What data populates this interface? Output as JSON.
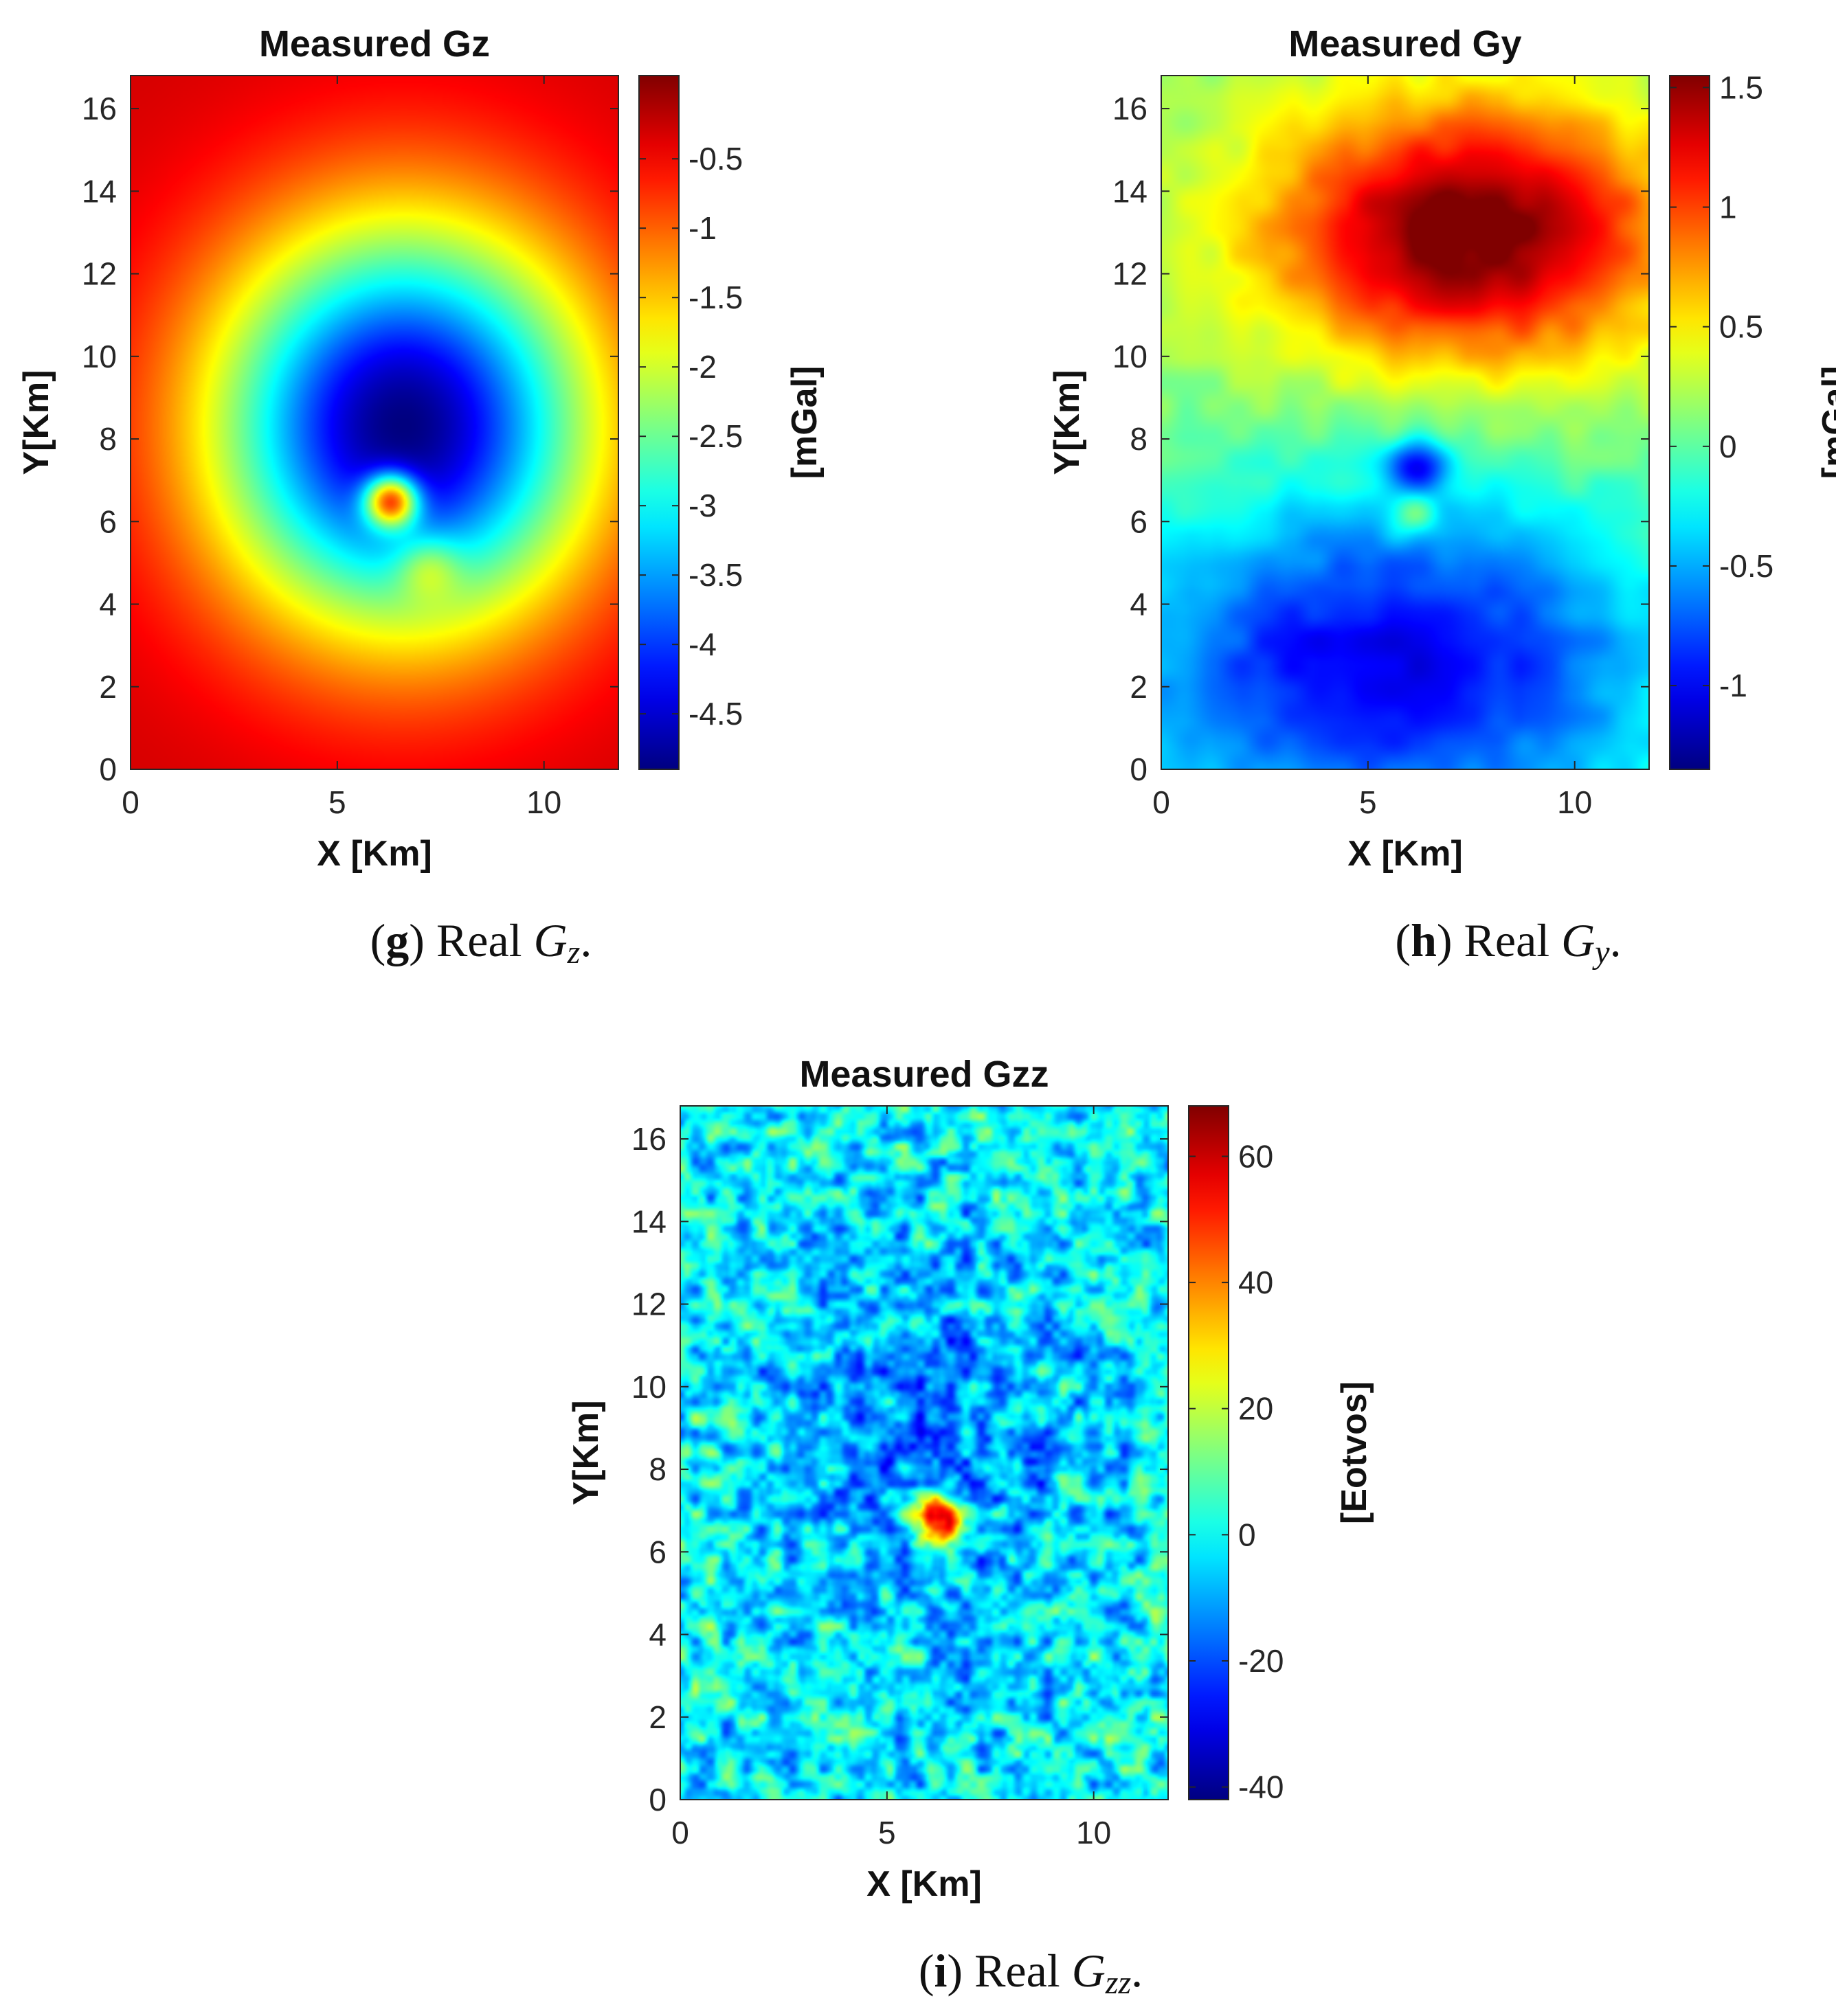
{
  "chart_data": [
    {
      "id": "gz",
      "type": "heatmap",
      "title": "Measured Gz",
      "xlabel": "X [Km]",
      "ylabel": "Y[Km]",
      "colorbar_label": "[mGal]",
      "colormap": "jet",
      "xlim": [
        0,
        11.8
      ],
      "ylim": [
        0,
        16.8
      ],
      "clim": [
        -4.9,
        0.1
      ],
      "xticks": [
        0,
        5,
        10
      ],
      "yticks": [
        0,
        2,
        4,
        6,
        8,
        10,
        12,
        14,
        16
      ],
      "cticks": [
        -0.5,
        -1,
        -1.5,
        -2,
        -2.5,
        -3,
        -3.5,
        -4,
        -4.5
      ],
      "ctick_labels": [
        "-0.5",
        "-1",
        "-1.5",
        "-2",
        "-2.5",
        "-3",
        "-3.5",
        "-4",
        "-4.5"
      ],
      "field_features": {
        "background": -0.3,
        "broad_low": {
          "x": 6.6,
          "y": 8.3,
          "amplitude": -4.6,
          "sigma_x": 3.2,
          "sigma_y": 3.4
        },
        "sharp_high": {
          "x": 6.3,
          "y": 6.5,
          "amplitude": 3.4,
          "sigma": 0.45
        },
        "secondary_high": {
          "x": 7.2,
          "y": 4.9,
          "amplitude": 0.9,
          "sigma": 0.55
        }
      },
      "caption": {
        "letter": "g",
        "text": " Real ",
        "symbol": "G",
        "sub": "z",
        "end": "."
      }
    },
    {
      "id": "gy",
      "type": "heatmap",
      "title": "Measured Gy",
      "xlabel": "X [Km]",
      "ylabel": "Y[Km]",
      "colorbar_label": "[mGal]",
      "colormap": "jet",
      "xlim": [
        0,
        11.8
      ],
      "ylim": [
        0,
        16.8
      ],
      "clim": [
        -1.35,
        1.55
      ],
      "xticks": [
        0,
        5,
        10
      ],
      "yticks": [
        0,
        2,
        4,
        6,
        8,
        10,
        12,
        14,
        16
      ],
      "cticks": [
        1.5,
        1,
        0.5,
        0,
        -0.5,
        -1
      ],
      "ctick_labels": [
        "1.5",
        "1",
        "0.5",
        "0",
        "-0.5",
        "-1"
      ],
      "field_features": {
        "north_high": {
          "x": 7.5,
          "y": 13.0,
          "amplitude": 1.5,
          "sigma_x": 3.4,
          "sigma_y": 2.2
        },
        "south_low": {
          "x": 5.5,
          "y": 2.5,
          "amplitude": -1.2,
          "sigma_x": 5.0,
          "sigma_y": 3.0
        },
        "dipole_low": {
          "x": 6.2,
          "y": 7.3,
          "amplitude": -0.9,
          "sigma": 0.5
        },
        "dipole_high": {
          "x": 6.1,
          "y": 6.2,
          "amplitude": 0.5,
          "sigma": 0.4
        }
      },
      "caption": {
        "letter": "h",
        "text": " Real ",
        "symbol": "G",
        "sub": "y",
        "end": "."
      }
    },
    {
      "id": "gzz",
      "type": "heatmap",
      "title": "Measured Gzz",
      "xlabel": "X [Km]",
      "ylabel": "Y[Km]",
      "colorbar_label": "[Eotvos]",
      "colormap": "jet",
      "xlim": [
        0,
        11.8
      ],
      "ylim": [
        0,
        16.8
      ],
      "clim": [
        -42,
        68
      ],
      "xticks": [
        0,
        5,
        10
      ],
      "yticks": [
        0,
        2,
        4,
        6,
        8,
        10,
        12,
        14,
        16
      ],
      "cticks": [
        60,
        40,
        20,
        0,
        -20,
        -40
      ],
      "ctick_labels": [
        "60",
        "40",
        "20",
        "0",
        "-20",
        "-40"
      ],
      "field_features": {
        "background": 0,
        "noise_amplitude": 14,
        "central_low": {
          "x": 6.3,
          "y": 8.6,
          "amplitude": -12,
          "sigma_x": 3.0,
          "sigma_y": 4.0
        },
        "sharp_high": {
          "x": 6.2,
          "y": 6.8,
          "amplitude": 70,
          "sigma": 0.42
        }
      },
      "caption": {
        "letter": "i",
        "text": " Real ",
        "symbol": "G",
        "sub": "zz",
        "end": "."
      }
    }
  ]
}
